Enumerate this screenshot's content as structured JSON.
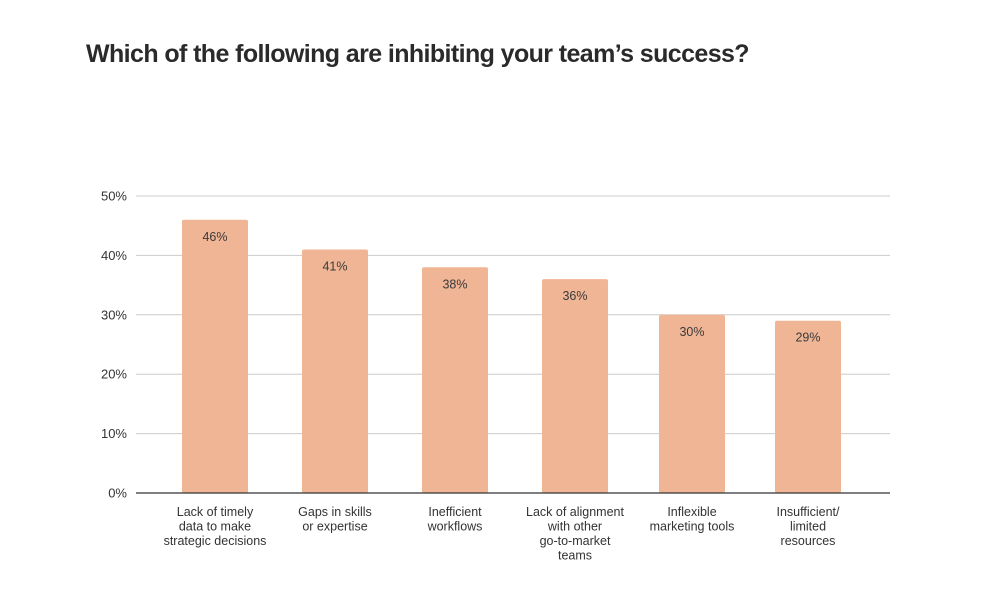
{
  "title": "Which of the following are inhibiting your team’s success?",
  "chart_data": {
    "type": "bar",
    "title": "Which of the following are inhibiting your team’s success?",
    "categories": [
      "Lack of timely data to make strategic decisions",
      "Gaps in skills or expertise",
      "Inefficient workflows",
      "Lack of alignment with other go-to-market teams",
      "Inflexible marketing tools",
      "Insufficient/ limited resources"
    ],
    "category_lines": [
      [
        "Lack of timely",
        "data to make",
        "strategic decisions"
      ],
      [
        "Gaps in skills",
        "or expertise"
      ],
      [
        "Inefficient",
        "workflows"
      ],
      [
        "Lack of alignment",
        "with other",
        "go-to-market",
        "teams"
      ],
      [
        "Inflexible",
        "marketing tools"
      ],
      [
        "Insufficient/",
        "limited",
        "resources"
      ]
    ],
    "values": [
      46,
      41,
      38,
      36,
      30,
      29
    ],
    "data_labels": [
      "46%",
      "41%",
      "38%",
      "36%",
      "30%",
      "29%"
    ],
    "ylim": [
      0,
      50
    ],
    "yticks": [
      0,
      10,
      20,
      30,
      40,
      50
    ],
    "ytick_labels": [
      "0%",
      "10%",
      "20%",
      "30%",
      "40%",
      "50%"
    ],
    "xlabel": "",
    "ylabel": "",
    "grid": true,
    "legend": "none",
    "colors": {
      "bar": "#f0b594",
      "grid": "#cccccc",
      "axis": "#333333"
    }
  }
}
